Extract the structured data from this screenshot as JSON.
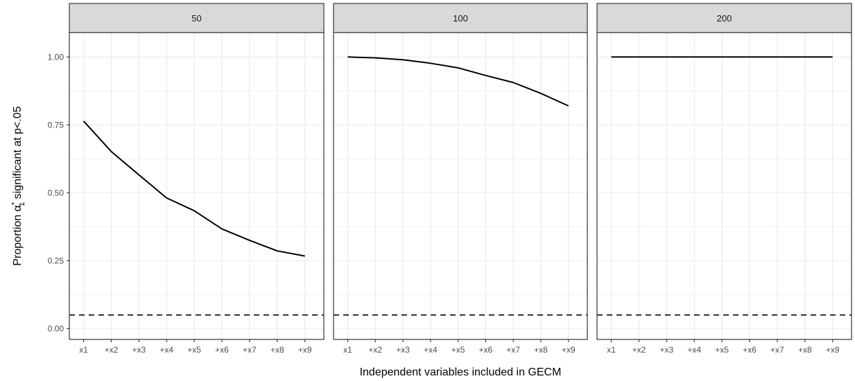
{
  "chart_data": {
    "type": "line",
    "facet_type": "small-multiples",
    "xlabel": "Independent variables included in GECM",
    "ylabel": {
      "prefix": "Proportion ",
      "symbol": "α",
      "superscript": "*",
      "subscript": "1",
      "suffix": " significant at p<.05"
    },
    "categories": [
      "x1",
      "+x2",
      "+x3",
      "+x4",
      "+x5",
      "+x6",
      "+x7",
      "+x8",
      "+x9"
    ],
    "ylim": [
      -0.04,
      1.09
    ],
    "yticks": [
      0.0,
      0.25,
      0.5,
      0.75,
      1.0
    ],
    "ytick_labels": [
      "0.00",
      "0.25",
      "0.50",
      "0.75",
      "1.00"
    ],
    "reference_line": {
      "y": 0.05,
      "style": "dashed"
    },
    "grid": true,
    "panels": [
      {
        "strip": "50",
        "values": [
          0.764,
          0.652,
          0.566,
          0.481,
          0.434,
          0.367,
          0.325,
          0.286,
          0.267
        ]
      },
      {
        "strip": "100",
        "values": [
          1.0,
          0.997,
          0.99,
          0.977,
          0.96,
          0.932,
          0.906,
          0.866,
          0.82
        ]
      },
      {
        "strip": "200",
        "values": [
          1.0,
          1.0,
          1.0,
          1.0,
          1.0,
          1.0,
          1.0,
          1.0,
          1.0
        ]
      }
    ],
    "colors": {
      "line": "#000000",
      "strip_fill": "#d9d9d9",
      "grid": "#ebebeb",
      "border": "#333333"
    }
  }
}
